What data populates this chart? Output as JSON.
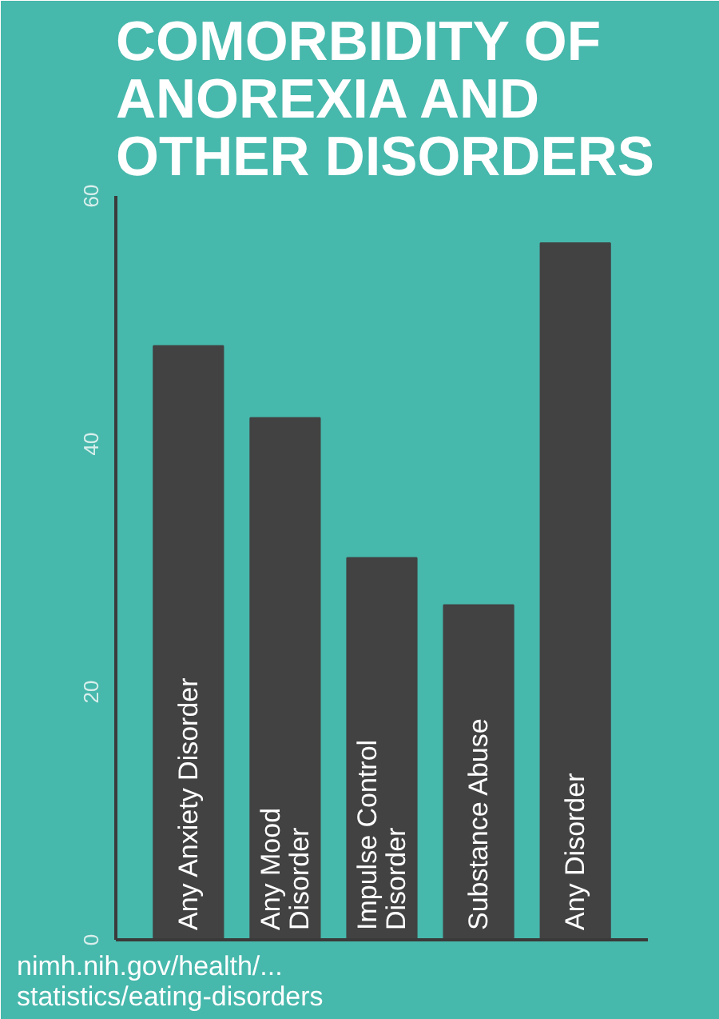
{
  "chart_data": {
    "type": "bar",
    "title": "COMORBIDITY OF ANOREXIA AND OTHER DISORDERS",
    "categories": [
      "Any Anxiety Disorder",
      "Any Mood\nDisorder",
      "Impulse Control\nDisorder",
      "Substance Abuse",
      "Any Disorder"
    ],
    "values": [
      47.9,
      42.1,
      30.8,
      27.0,
      56.2
    ],
    "color": "#424242",
    "ylim": [
      0,
      60
    ],
    "yticks": [
      0,
      20,
      40,
      60
    ],
    "grid": false,
    "annotations": [
      "nimh.nih.gov/health/... statistics/eating-disorders"
    ]
  }
}
